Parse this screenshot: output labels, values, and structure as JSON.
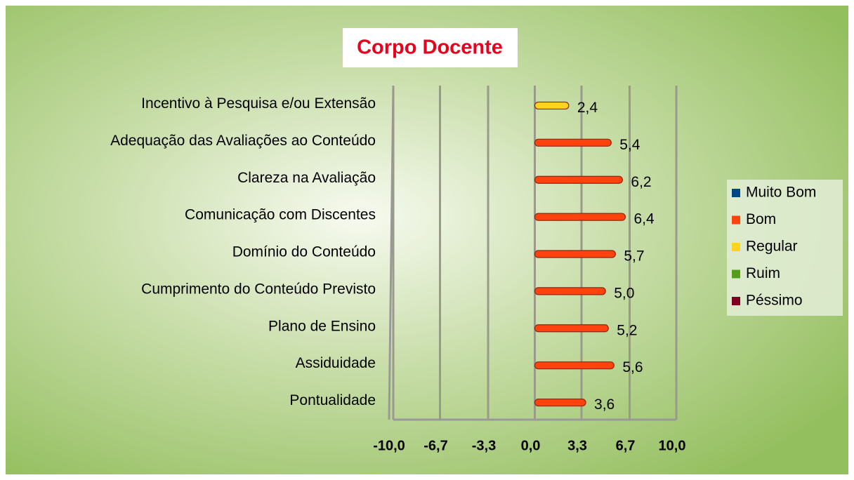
{
  "chart_data": {
    "type": "bar",
    "orientation": "horizontal",
    "title": "Corpo Docente",
    "categories": [
      "Incentivo à Pesquisa e/ou Extensão",
      "Adequação das Avaliações ao Conteúdo",
      "Clareza na Avaliação",
      "Comunicação com Discentes",
      "Domínio do Conteúdo",
      "Cumprimento do Conteúdo Previsto",
      "Plano de Ensino",
      "Assiduidade",
      "Pontualidade"
    ],
    "series": [
      {
        "name": "Muito Bom",
        "color": "#004586",
        "values": [
          null,
          null,
          null,
          null,
          null,
          null,
          null,
          null,
          null
        ],
        "value_labels": [
          null,
          null,
          null,
          null,
          null,
          null,
          null,
          null,
          null
        ]
      },
      {
        "name": "Bom",
        "color": "#ff420e",
        "values": [
          null,
          5.4,
          6.2,
          6.4,
          5.7,
          5.0,
          5.2,
          5.6,
          3.6
        ],
        "value_labels": [
          null,
          "5,4",
          "6,2",
          "6,4",
          "5,7",
          "5,0",
          "5,2",
          "5,6",
          "3,6"
        ]
      },
      {
        "name": "Regular",
        "color": "#ffd320",
        "values": [
          2.4,
          null,
          null,
          null,
          null,
          null,
          null,
          null,
          null
        ],
        "value_labels": [
          "2,4",
          null,
          null,
          null,
          null,
          null,
          null,
          null,
          null
        ]
      },
      {
        "name": "Ruim",
        "color": "#579d1c",
        "values": [
          null,
          null,
          null,
          null,
          null,
          null,
          null,
          null,
          null
        ],
        "value_labels": [
          null,
          null,
          null,
          null,
          null,
          null,
          null,
          null,
          null
        ]
      },
      {
        "name": "Péssimo",
        "color": "#7e0021",
        "values": [
          null,
          null,
          null,
          null,
          null,
          null,
          null,
          null,
          null
        ],
        "value_labels": [
          null,
          null,
          null,
          null,
          null,
          null,
          null,
          null,
          null
        ]
      }
    ],
    "xlim": [
      -10,
      10
    ],
    "xticks": [
      {
        "value": -10,
        "label": "-10,0"
      },
      {
        "value": -6.7,
        "label": "-6,7"
      },
      {
        "value": -3.3,
        "label": "-3,3"
      },
      {
        "value": 0,
        "label": "0,0"
      },
      {
        "value": 3.3,
        "label": "3,3"
      },
      {
        "value": 6.7,
        "label": "6,7"
      },
      {
        "value": 10,
        "label": "10,0"
      }
    ],
    "grid": true,
    "legend": "right"
  }
}
